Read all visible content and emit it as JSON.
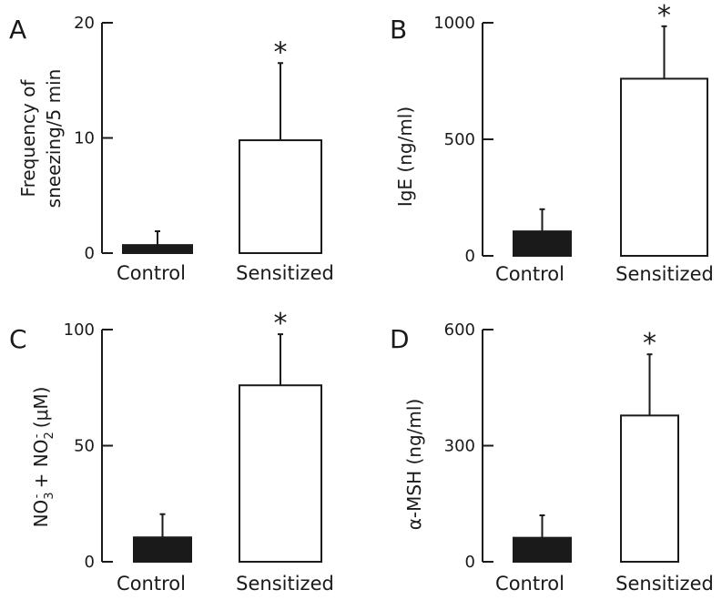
{
  "chart_data": [
    {
      "type": "bar",
      "panel_label": "A",
      "ylabel_lines": [
        "Frequency of",
        "sneezing/5 min"
      ],
      "categories": [
        "Control",
        "Sensitized"
      ],
      "values": [
        0.7,
        9.8
      ],
      "errors": [
        1.2,
        6.7
      ],
      "significance": [
        "",
        "*"
      ],
      "ylim": [
        0,
        20
      ],
      "yticks": [
        0,
        10,
        20
      ],
      "bar_colors": [
        "#1a1a1a",
        "#ffffff"
      ]
    },
    {
      "type": "bar",
      "panel_label": "B",
      "ylabel": "IgE (ng/ml)",
      "categories": [
        "Control",
        "Sensitized"
      ],
      "values": [
        105,
        760
      ],
      "errors": [
        95,
        225
      ],
      "significance": [
        "",
        "*"
      ],
      "ylim": [
        0,
        1000
      ],
      "yticks": [
        0,
        500,
        1000
      ],
      "bar_colors": [
        "#1a1a1a",
        "#ffffff"
      ]
    },
    {
      "type": "bar",
      "panel_label": "C",
      "ylabel_parts": {
        "t1": "NO",
        "sub1": "3",
        "sup1": "-",
        "t2": " + NO",
        "sub2": "2",
        "sup2": "-",
        "t3": " (μM)"
      },
      "categories": [
        "Control",
        "Sensitized"
      ],
      "values": [
        10.5,
        76
      ],
      "errors": [
        10,
        22
      ],
      "significance": [
        "",
        "*"
      ],
      "ylim": [
        0,
        100
      ],
      "yticks": [
        0,
        50,
        100
      ],
      "bar_colors": [
        "#1a1a1a",
        "#ffffff"
      ]
    },
    {
      "type": "bar",
      "panel_label": "D",
      "ylabel": "α-MSH (ng/ml)",
      "categories": [
        "Control",
        "Sensitized"
      ],
      "values": [
        62,
        378
      ],
      "errors": [
        58,
        158
      ],
      "significance": [
        "",
        "*"
      ],
      "ylim": [
        0,
        600
      ],
      "yticks": [
        0,
        300,
        600
      ],
      "bar_colors": [
        "#1a1a1a",
        "#ffffff"
      ]
    }
  ]
}
